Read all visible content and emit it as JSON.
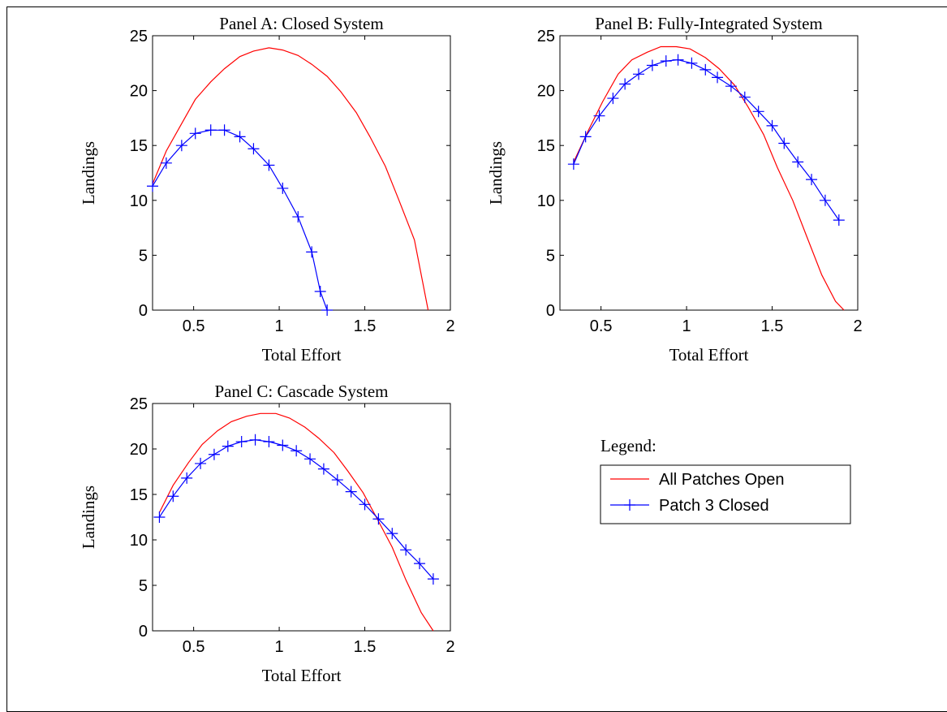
{
  "chart_data": [
    {
      "type": "line",
      "title": "Panel A: Closed System",
      "xlabel": "Total Effort",
      "ylabel": "Landings",
      "xlim": [
        0.26,
        2.0
      ],
      "ylim": [
        0,
        25
      ],
      "xticks": [
        0.5,
        1,
        1.5,
        2
      ],
      "yticks": [
        0,
        5,
        10,
        15,
        20,
        25
      ],
      "grid": false,
      "series": [
        {
          "name": "All Patches Open",
          "color": "#ff0000",
          "marker": "none",
          "x": [
            0.26,
            0.34,
            0.43,
            0.51,
            0.6,
            0.68,
            0.77,
            0.85,
            0.94,
            1.02,
            1.11,
            1.19,
            1.28,
            1.36,
            1.45,
            1.53,
            1.62,
            1.7,
            1.79,
            1.87
          ],
          "y": [
            11.5,
            14.5,
            17.0,
            19.2,
            20.8,
            22.0,
            23.1,
            23.6,
            23.9,
            23.7,
            23.2,
            22.4,
            21.3,
            19.9,
            18.0,
            15.8,
            13.1,
            10.0,
            6.4,
            0.0
          ]
        },
        {
          "name": "Patch 3 Closed",
          "color": "#0000ff",
          "marker": "+",
          "x": [
            0.26,
            0.34,
            0.43,
            0.51,
            0.6,
            0.68,
            0.77,
            0.85,
            0.94,
            1.02,
            1.11,
            1.19,
            1.24,
            1.28
          ],
          "y": [
            11.3,
            13.4,
            15.0,
            16.1,
            16.4,
            16.4,
            15.8,
            14.7,
            13.2,
            11.1,
            8.5,
            5.3,
            1.7,
            0.0
          ]
        }
      ]
    },
    {
      "type": "line",
      "title": "Panel B: Fully-Integrated System",
      "xlabel": "Total Effort",
      "ylabel": "Landings",
      "xlim": [
        0.26,
        2.0
      ],
      "ylim": [
        0,
        25
      ],
      "xticks": [
        0.5,
        1,
        1.5,
        2
      ],
      "yticks": [
        0,
        5,
        10,
        15,
        20,
        25
      ],
      "grid": false,
      "series": [
        {
          "name": "All Patches Open",
          "color": "#ff0000",
          "marker": "none",
          "x": [
            0.34,
            0.43,
            0.51,
            0.6,
            0.68,
            0.77,
            0.85,
            0.94,
            1.02,
            1.11,
            1.19,
            1.28,
            1.36,
            1.45,
            1.53,
            1.62,
            1.7,
            1.79,
            1.87,
            1.92
          ],
          "y": [
            13.5,
            16.5,
            19.0,
            21.5,
            22.8,
            23.5,
            24.0,
            24.0,
            23.8,
            23.0,
            22.0,
            20.5,
            18.5,
            16.0,
            13.0,
            10.0,
            6.8,
            3.2,
            0.8,
            0.0
          ]
        },
        {
          "name": "Patch 3 Closed",
          "color": "#0000ff",
          "marker": "+",
          "x": [
            0.34,
            0.41,
            0.49,
            0.57,
            0.64,
            0.72,
            0.8,
            0.88,
            0.95,
            1.03,
            1.11,
            1.18,
            1.26,
            1.34,
            1.42,
            1.5,
            1.57,
            1.65,
            1.73,
            1.81,
            1.89
          ],
          "y": [
            13.3,
            15.8,
            17.7,
            19.3,
            20.6,
            21.5,
            22.3,
            22.7,
            22.8,
            22.5,
            21.9,
            21.2,
            20.4,
            19.4,
            18.1,
            16.8,
            15.2,
            13.5,
            11.9,
            10.0,
            8.2
          ]
        }
      ]
    },
    {
      "type": "line",
      "title": "Panel C: Cascade System",
      "xlabel": "Total Effort",
      "ylabel": "Landings",
      "xlim": [
        0.26,
        2.0
      ],
      "ylim": [
        0,
        25
      ],
      "xticks": [
        0.5,
        1,
        1.5,
        2
      ],
      "yticks": [
        0,
        5,
        10,
        15,
        20,
        25
      ],
      "grid": false,
      "series": [
        {
          "name": "All Patches Open",
          "color": "#ff0000",
          "marker": "none",
          "x": [
            0.3,
            0.38,
            0.47,
            0.55,
            0.64,
            0.72,
            0.81,
            0.89,
            0.98,
            1.06,
            1.15,
            1.23,
            1.32,
            1.4,
            1.49,
            1.57,
            1.66,
            1.74,
            1.83,
            1.9
          ],
          "y": [
            13.0,
            16.0,
            18.5,
            20.5,
            22.0,
            23.0,
            23.6,
            23.9,
            23.9,
            23.4,
            22.4,
            21.2,
            19.6,
            17.6,
            15.2,
            12.4,
            9.2,
            5.6,
            2.0,
            0.0
          ]
        },
        {
          "name": "Patch 3 Closed",
          "color": "#0000ff",
          "marker": "+",
          "x": [
            0.3,
            0.38,
            0.46,
            0.54,
            0.62,
            0.7,
            0.78,
            0.86,
            0.94,
            1.02,
            1.1,
            1.18,
            1.26,
            1.34,
            1.42,
            1.5,
            1.58,
            1.66,
            1.74,
            1.82,
            1.9
          ],
          "y": [
            12.5,
            14.8,
            16.8,
            18.4,
            19.4,
            20.3,
            20.8,
            21.0,
            20.8,
            20.4,
            19.8,
            18.9,
            17.8,
            16.6,
            15.3,
            13.9,
            12.3,
            10.7,
            8.9,
            7.4,
            5.7
          ]
        }
      ]
    }
  ],
  "legend": {
    "title": "Legend:",
    "entries": [
      {
        "label": "All Patches Open",
        "color": "#ff0000",
        "marker": "none"
      },
      {
        "label": "Patch 3 Closed",
        "color": "#0000ff",
        "marker": "+"
      }
    ]
  }
}
